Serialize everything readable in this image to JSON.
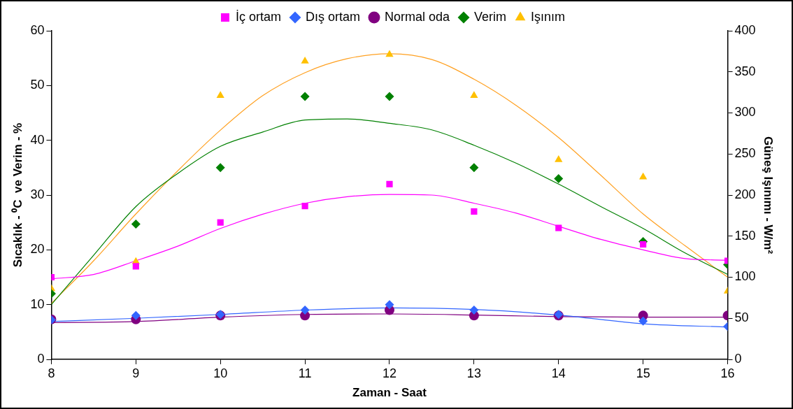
{
  "chart_data": {
    "type": "scatter",
    "xlabel": "Zaman - Saat",
    "ylabel": "Sıcaklık - ⁰C  ve Verim - %",
    "y2label": "Güneş Işınımı - W/m²",
    "xlim": [
      8,
      16
    ],
    "xticks": [
      8,
      9,
      10,
      11,
      12,
      13,
      14,
      15,
      16
    ],
    "ylim": [
      0,
      60
    ],
    "yticks": [
      0,
      10,
      20,
      30,
      40,
      50,
      60
    ],
    "y2lim": [
      0,
      400
    ],
    "y2ticks": [
      0,
      50,
      100,
      150,
      200,
      250,
      300,
      350,
      400
    ],
    "grid": false,
    "legend": "top",
    "series": [
      {
        "name": "İç ortam",
        "color": "#ff00ff",
        "marker": "square",
        "x": [
          8,
          9,
          10,
          11,
          12,
          13,
          14,
          15,
          16
        ],
        "values": [
          15,
          17,
          25,
          28,
          32,
          27,
          24,
          21,
          18
        ]
      },
      {
        "name": "Dış ortam",
        "color": "#3366ff",
        "marker": "diamond",
        "x": [
          8,
          9,
          10,
          11,
          12,
          13,
          14,
          15,
          16
        ],
        "values": [
          7.2,
          8,
          8.2,
          9,
          10,
          9,
          8.2,
          7,
          6
        ]
      },
      {
        "name": "Normal oda",
        "color": "#800080",
        "marker": "circle",
        "x": [
          8,
          9,
          10,
          11,
          12,
          13,
          14,
          15,
          16
        ],
        "values": [
          7.3,
          7.3,
          8,
          8,
          9,
          8,
          8,
          8,
          8
        ]
      },
      {
        "name": "Verim",
        "color": "#008000",
        "marker": "diamond",
        "x": [
          8,
          9,
          10,
          11,
          12,
          13,
          14,
          15,
          16
        ],
        "values": [
          12,
          24.7,
          35,
          48,
          48,
          35,
          33,
          21.5,
          17.3
        ]
      },
      {
        "name": "Işınım",
        "color": "#ffc000",
        "marker": "triangle",
        "axis": "y2",
        "x": [
          8,
          9,
          10,
          11,
          12,
          13,
          14,
          15,
          16
        ],
        "values": [
          86,
          119,
          321,
          363,
          371,
          321,
          243,
          222,
          83
        ]
      },
      {
        "type": "line",
        "color": "#ff00ff",
        "marker": "none",
        "x": [
          8,
          8.5,
          9,
          9.5,
          10,
          10.5,
          11,
          11.5,
          12,
          12.5,
          13,
          13.5,
          14,
          14.5,
          15,
          15.5,
          16
        ],
        "values": [
          14.7,
          15.5,
          18,
          20.7,
          23.9,
          26.5,
          28.5,
          29.7,
          30.1,
          30,
          28.5,
          26.7,
          24.3,
          21.9,
          20,
          18.4,
          18.1
        ]
      },
      {
        "type": "line",
        "color": "#3366ff",
        "marker": "none",
        "x": [
          8,
          9,
          10,
          11,
          12,
          13,
          14,
          15,
          16
        ],
        "values": [
          6.9,
          7.5,
          8.2,
          9,
          9.4,
          9.1,
          8.1,
          6.5,
          5.9
        ]
      },
      {
        "type": "line",
        "color": "#800080",
        "marker": "none",
        "x": [
          8,
          9,
          10,
          11,
          12,
          13,
          14,
          15,
          16
        ],
        "values": [
          6.7,
          6.9,
          7.7,
          8.2,
          8.3,
          8.1,
          7.8,
          7.7,
          7.7
        ]
      },
      {
        "type": "line",
        "color": "#008000",
        "marker": "none",
        "x": [
          8,
          8.5,
          9,
          9.5,
          10,
          10.5,
          11,
          11.5,
          12,
          12.5,
          13,
          13.5,
          14,
          14.5,
          15,
          15.5,
          16
        ],
        "values": [
          10,
          19,
          27.9,
          34,
          38.9,
          41.5,
          43.7,
          43.9,
          43.1,
          41.9,
          39.1,
          35.8,
          32,
          27.9,
          23.9,
          19.4,
          15.5
        ]
      },
      {
        "type": "line",
        "color": "#ffa020",
        "marker": "none",
        "axis": "y2",
        "x": [
          8,
          8.5,
          9,
          9.5,
          10,
          10.5,
          11,
          11.5,
          12,
          12.5,
          13,
          13.5,
          14,
          14.5,
          15,
          15.5,
          16
        ],
        "values": [
          68,
          120,
          177,
          230,
          279,
          321,
          349,
          366,
          372,
          365,
          341,
          309,
          270,
          224,
          177,
          138,
          100
        ]
      }
    ]
  }
}
